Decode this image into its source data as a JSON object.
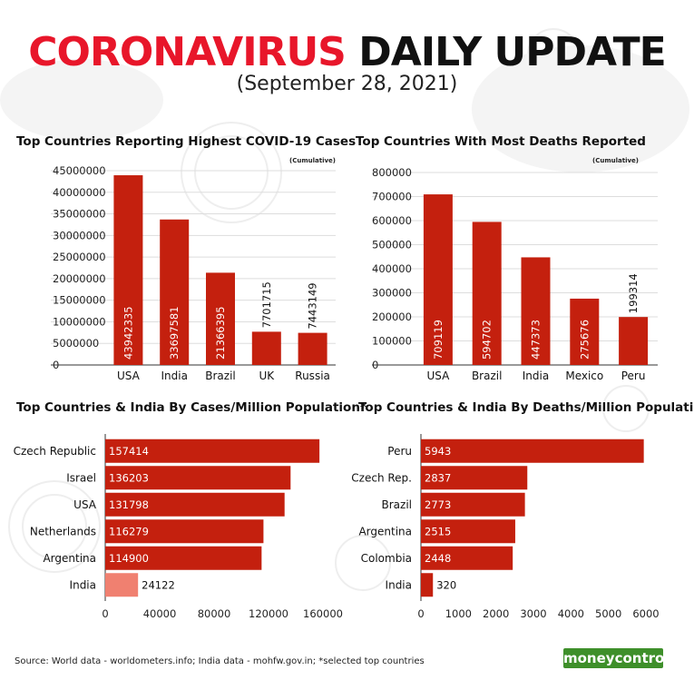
{
  "header": {
    "title_red": "CORONAVIRUS",
    "title_black": "DAILY UPDATE",
    "subtitle": "(September 28, 2021)"
  },
  "chart_data": [
    {
      "type": "bar",
      "title": "Top Countries Reporting Highest COVID-19 Cases",
      "note": "(Cumulative)",
      "categories": [
        "USA",
        "India",
        "Brazil",
        "UK",
        "Russia"
      ],
      "values": [
        43942335,
        33697581,
        21366395,
        7701715,
        7443149
      ],
      "yticks": [
        0,
        5000000,
        10000000,
        15000000,
        20000000,
        25000000,
        30000000,
        35000000,
        40000000,
        45000000
      ],
      "ylim": [
        0,
        45000000
      ],
      "color": "#c4200e"
    },
    {
      "type": "bar",
      "title": "Top Countries With Most Deaths Reported",
      "note": "(Cumulative)",
      "categories": [
        "USA",
        "Brazil",
        "India",
        "Mexico",
        "Peru"
      ],
      "values": [
        709119,
        594702,
        447373,
        275676,
        199314
      ],
      "yticks": [
        0,
        100000,
        200000,
        300000,
        400000,
        500000,
        600000,
        700000,
        800000
      ],
      "ylim": [
        0,
        800000
      ],
      "color": "#c4200e"
    },
    {
      "type": "bar",
      "orientation": "horizontal",
      "title": "Top Countries & India By Cases/Million Population*",
      "categories": [
        "Czech Republic",
        "Israel",
        "USA",
        "Netherlands",
        "Argentina",
        "India"
      ],
      "values": [
        157414,
        136203,
        131798,
        116279,
        114900,
        24122
      ],
      "xticks": [
        0,
        40000,
        80000,
        120000,
        160000
      ],
      "xlim": [
        0,
        160000
      ],
      "color": "#c4200e",
      "highlight_color": "#f08070"
    },
    {
      "type": "bar",
      "orientation": "horizontal",
      "title": "Top Countries & India By Deaths/Million Population*",
      "categories": [
        "Peru",
        "Czech Rep.",
        "Brazil",
        "Argentina",
        "Colombia",
        "India"
      ],
      "values": [
        5943,
        2837,
        2773,
        2515,
        2448,
        320
      ],
      "xticks": [
        0,
        1000,
        2000,
        3000,
        4000,
        5000,
        6000
      ],
      "xlim": [
        0,
        6000
      ],
      "color": "#c4200e",
      "highlight_color": "#c4200e"
    }
  ],
  "footer": {
    "source": "Source: World data - worldometers.info; India data - mohfw.gov.in; *selected top countries",
    "logo_text": "moneycontrol"
  }
}
